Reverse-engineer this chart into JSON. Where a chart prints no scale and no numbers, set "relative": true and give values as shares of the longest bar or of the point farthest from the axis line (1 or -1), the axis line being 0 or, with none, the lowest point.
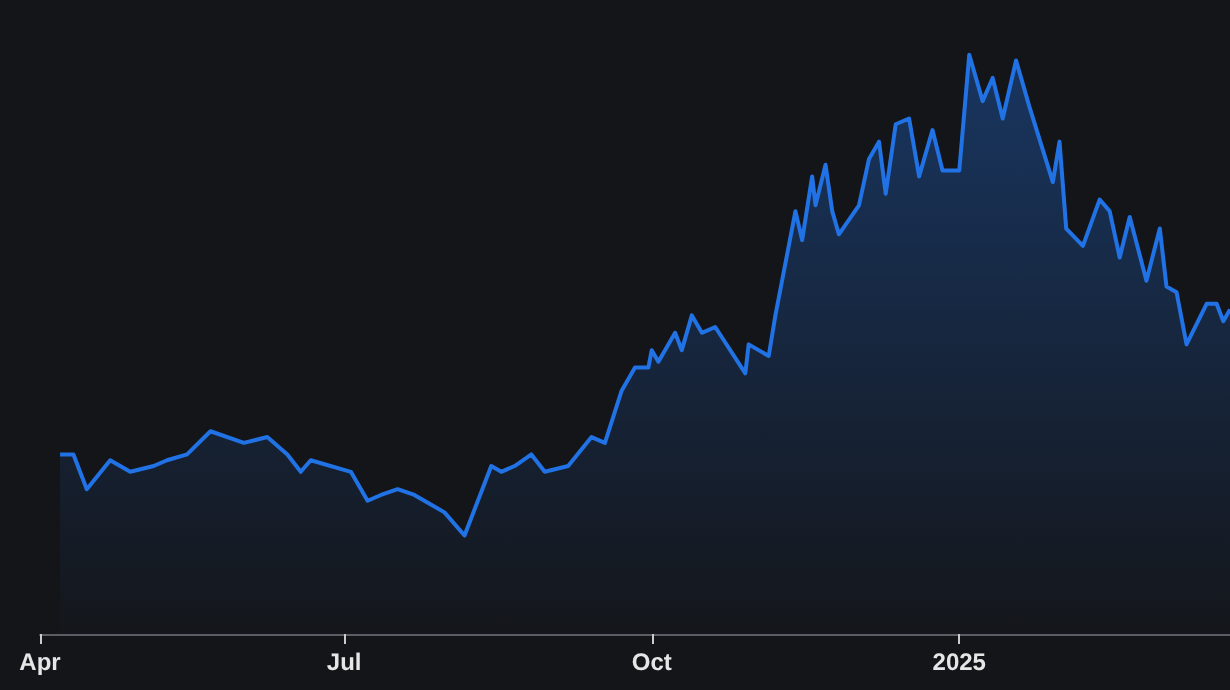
{
  "chart_data": {
    "type": "area",
    "relative": true,
    "color": "#2172e5",
    "x": [
      "2024-04-07",
      "2024-04-11",
      "2024-04-15",
      "2024-04-22",
      "2024-04-28",
      "2024-05-05",
      "2024-05-09",
      "2024-05-15",
      "2024-05-22",
      "2024-06-01",
      "2024-06-08",
      "2024-06-14",
      "2024-06-18",
      "2024-06-21",
      "2024-07-03",
      "2024-07-08",
      "2024-07-12",
      "2024-07-17",
      "2024-07-22",
      "2024-07-31",
      "2024-08-06",
      "2024-08-14",
      "2024-08-17",
      "2024-08-21",
      "2024-08-26",
      "2024-08-30",
      "2024-09-06",
      "2024-09-13",
      "2024-09-17",
      "2024-09-22",
      "2024-09-26",
      "2024-09-30",
      "2024-10-01",
      "2024-10-03",
      "2024-10-08",
      "2024-10-10",
      "2024-10-13",
      "2024-10-16",
      "2024-10-20",
      "2024-10-29",
      "2024-10-30",
      "2024-11-05",
      "2024-11-07",
      "2024-11-13",
      "2024-11-15",
      "2024-11-18",
      "2024-11-19",
      "2024-11-22",
      "2024-11-24",
      "2024-11-26",
      "2024-12-02",
      "2024-12-05",
      "2024-12-08",
      "2024-12-10",
      "2024-12-13",
      "2024-12-17",
      "2024-12-20",
      "2024-12-24",
      "2024-12-27",
      "2025-01-01",
      "2025-01-04",
      "2025-01-08",
      "2025-01-11",
      "2025-01-14",
      "2025-01-18",
      "2025-01-22",
      "2025-01-29",
      "2025-01-31",
      "2025-02-02",
      "2025-02-07",
      "2025-02-12",
      "2025-02-15",
      "2025-02-18",
      "2025-02-21",
      "2025-02-26",
      "2025-03-02",
      "2025-03-04",
      "2025-03-07",
      "2025-03-10",
      "2025-03-16",
      "2025-03-19",
      "2025-03-21",
      "2025-03-23"
    ],
    "values": [
      0.31,
      0.31,
      0.25,
      0.3,
      0.28,
      0.29,
      0.3,
      0.31,
      0.35,
      0.33,
      0.34,
      0.31,
      0.28,
      0.3,
      0.28,
      0.23,
      0.24,
      0.25,
      0.24,
      0.21,
      0.17,
      0.29,
      0.28,
      0.29,
      0.31,
      0.28,
      0.29,
      0.34,
      0.33,
      0.42,
      0.46,
      0.46,
      0.49,
      0.47,
      0.52,
      0.49,
      0.55,
      0.52,
      0.53,
      0.45,
      0.5,
      0.48,
      0.55,
      0.73,
      0.68,
      0.79,
      0.74,
      0.81,
      0.73,
      0.69,
      0.74,
      0.82,
      0.85,
      0.76,
      0.88,
      0.89,
      0.79,
      0.87,
      0.8,
      0.8,
      1,
      0.92,
      0.96,
      0.89,
      0.99,
      0.91,
      0.78,
      0.85,
      0.7,
      0.67,
      0.75,
      0.73,
      0.65,
      0.72,
      0.61,
      0.7,
      0.6,
      0.59,
      0.5,
      0.57,
      0.57,
      0.54,
      0.56
    ],
    "xlim": [
      "2024-04-01",
      "2025-03-23"
    ],
    "xticks": [
      {
        "value": "2024-04-01",
        "label": "Apr"
      },
      {
        "value": "2024-07-01",
        "label": "Jul"
      },
      {
        "value": "2024-10-01",
        "label": "Oct"
      },
      {
        "value": "2025-01-01",
        "label": "2025"
      }
    ]
  }
}
